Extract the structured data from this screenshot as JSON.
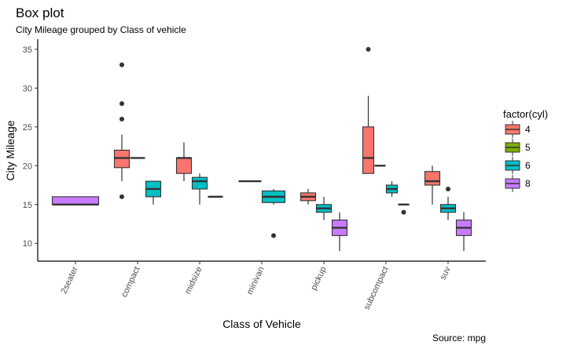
{
  "chart_data": {
    "type": "box",
    "title": "Box plot",
    "subtitle": "City Mileage grouped by Class of vehicle",
    "xlabel": "Class of Vehicle",
    "ylabel": "City Mileage",
    "caption": "Source: mpg",
    "ylim": [
      7.7,
      36.3
    ],
    "yticks": [
      10,
      15,
      20,
      25,
      30,
      35
    ],
    "grid": false,
    "categories": [
      "2seater",
      "compact",
      "midsize",
      "minivan",
      "pickup",
      "subcompact",
      "suv"
    ],
    "legend": {
      "title": "factor(cyl)",
      "position": "right",
      "entries": [
        "4",
        "5",
        "6",
        "8"
      ]
    },
    "colors": {
      "4": "#F8766D",
      "5": "#7CAE00",
      "6": "#00BFC4",
      "8": "#C77CFF"
    },
    "boxes": [
      {
        "category": "2seater",
        "cyl": "8",
        "min": 15,
        "q1": 15,
        "median": 15,
        "q3": 16,
        "max": 16,
        "outliers": []
      },
      {
        "category": "compact",
        "cyl": "4",
        "min": 18,
        "q1": 19.75,
        "median": 21,
        "q3": 22,
        "max": 24,
        "outliers": [
          16,
          26,
          28,
          33
        ]
      },
      {
        "category": "compact",
        "cyl": "5",
        "min": 21,
        "q1": 21,
        "median": 21,
        "q3": 21,
        "max": 21,
        "outliers": []
      },
      {
        "category": "compact",
        "cyl": "6",
        "min": 15,
        "q1": 16,
        "median": 17,
        "q3": 18,
        "max": 18,
        "outliers": []
      },
      {
        "category": "midsize",
        "cyl": "4",
        "min": 18,
        "q1": 19,
        "median": 21,
        "q3": 21,
        "max": 23,
        "outliers": []
      },
      {
        "category": "midsize",
        "cyl": "6",
        "min": 15,
        "q1": 17,
        "median": 18,
        "q3": 18.5,
        "max": 19,
        "outliers": []
      },
      {
        "category": "midsize",
        "cyl": "8",
        "min": 16,
        "q1": 16,
        "median": 16,
        "q3": 16,
        "max": 16,
        "outliers": []
      },
      {
        "category": "minivan",
        "cyl": "4",
        "min": 18,
        "q1": 18,
        "median": 18,
        "q3": 18,
        "max": 18,
        "outliers": []
      },
      {
        "category": "minivan",
        "cyl": "6",
        "min": 15,
        "q1": 15.25,
        "median": 16,
        "q3": 16.75,
        "max": 17,
        "outliers": [
          11
        ]
      },
      {
        "category": "pickup",
        "cyl": "4",
        "min": 15,
        "q1": 15.5,
        "median": 16,
        "q3": 16.5,
        "max": 17,
        "outliers": []
      },
      {
        "category": "pickup",
        "cyl": "6",
        "min": 13,
        "q1": 14,
        "median": 14.5,
        "q3": 15,
        "max": 16,
        "outliers": []
      },
      {
        "category": "pickup",
        "cyl": "8",
        "min": 9,
        "q1": 11,
        "median": 12,
        "q3": 13,
        "max": 14,
        "outliers": []
      },
      {
        "category": "subcompact",
        "cyl": "4",
        "min": 19,
        "q1": 19,
        "median": 21,
        "q3": 25,
        "max": 29,
        "outliers": [
          35
        ]
      },
      {
        "category": "subcompact",
        "cyl": "5",
        "min": 20,
        "q1": 20,
        "median": 20,
        "q3": 20,
        "max": 20,
        "outliers": []
      },
      {
        "category": "subcompact",
        "cyl": "6",
        "min": 16,
        "q1": 16.5,
        "median": 17,
        "q3": 17.5,
        "max": 18,
        "outliers": []
      },
      {
        "category": "subcompact",
        "cyl": "8",
        "min": 15,
        "q1": 15,
        "median": 15,
        "q3": 15,
        "max": 15,
        "outliers": [
          14
        ]
      },
      {
        "category": "suv",
        "cyl": "4",
        "min": 15,
        "q1": 17.5,
        "median": 18,
        "q3": 19.25,
        "max": 20,
        "outliers": []
      },
      {
        "category": "suv",
        "cyl": "6",
        "min": 13,
        "q1": 14,
        "median": 14.5,
        "q3": 15,
        "max": 16,
        "outliers": [
          17
        ]
      },
      {
        "category": "suv",
        "cyl": "8",
        "min": 9,
        "q1": 11,
        "median": 12,
        "q3": 13,
        "max": 14,
        "outliers": []
      }
    ]
  }
}
